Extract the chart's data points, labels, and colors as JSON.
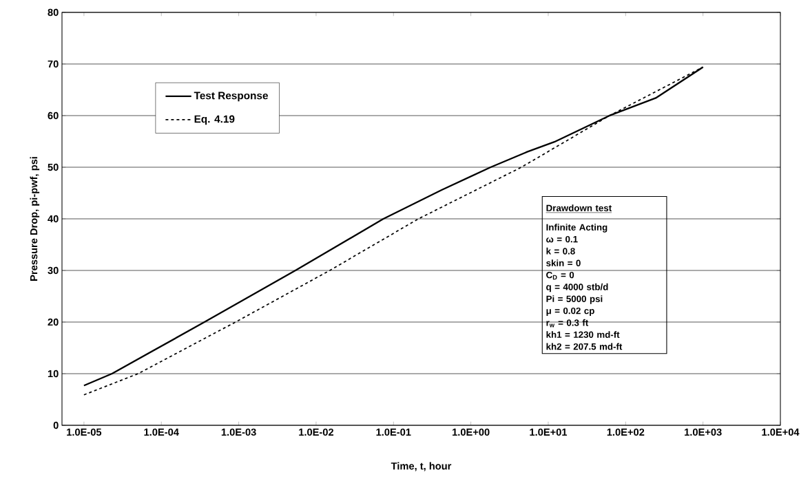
{
  "chart_data": {
    "type": "line",
    "xlabel": "Time, t, hour",
    "ylabel": "Pressure Drop, pi-pwf, psi",
    "log": "x",
    "grid": "y",
    "legend": "top left",
    "xlim": [
      5.2e-06,
      10000
    ],
    "xticks": [
      {
        "value": 1e-05,
        "label": "1.0E-05"
      },
      {
        "value": 0.0001,
        "label": "1.0E-04"
      },
      {
        "value": 0.001,
        "label": "1.0E-03"
      },
      {
        "value": 0.01,
        "label": "1.0E-02"
      },
      {
        "value": 0.1,
        "label": "1.0E-01"
      },
      {
        "value": 1,
        "label": "1.0E+00"
      },
      {
        "value": 10,
        "label": "1.0E+01"
      },
      {
        "value": 100,
        "label": "1.0E+02"
      },
      {
        "value": 1000,
        "label": "1.0E+03"
      },
      {
        "value": 10000,
        "label": "1.0E+04"
      }
    ],
    "ylim": [
      0,
      80
    ],
    "yticks": [
      0,
      10,
      20,
      30,
      40,
      50,
      60,
      70,
      80
    ],
    "series": [
      {
        "name": "Test Response",
        "color": "#000000",
        "line_style": "solid",
        "x": [
          1e-05,
          2.3e-05,
          0.00036,
          0.0054,
          0.074,
          0.42,
          1.8,
          5.2,
          12,
          62,
          245,
          1000
        ],
        "values": [
          7.7,
          10,
          20,
          30,
          40,
          45.6,
          50,
          52.9,
          54.9,
          60,
          63.4,
          69.4
        ]
      },
      {
        "name": "Eq. 4.19",
        "color": "#000000",
        "line_style": "dashed",
        "x": [
          1e-05,
          5e-05,
          0.00091,
          0.015,
          0.21,
          4.5,
          62,
          1000
        ],
        "values": [
          5.9,
          10,
          20,
          30,
          40,
          50,
          60,
          69.4
        ]
      }
    ],
    "annotations": [
      "Drawdown test",
      "Infinite Acting",
      "ω = 0.1",
      "k = 0.8",
      "skin = 0",
      "C$_{D}$ = 0",
      "q = 4000 stb/d",
      "Pi = 5000 psi",
      "μ = 0.02 cp",
      "r$_{w}$ = 0.3 ft",
      "kh1 = 1230 md-ft",
      "kh2 = 207.5 md-ft"
    ]
  }
}
